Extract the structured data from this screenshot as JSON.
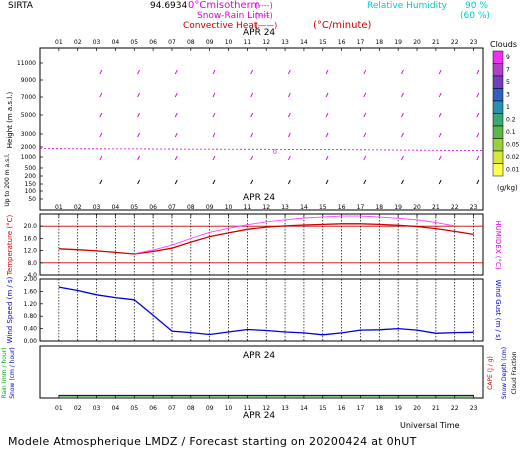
{
  "header": {
    "site": "SIRTA",
    "coords": "94.6934",
    "legend_iso": {
      "label": "0°Cmisotherm",
      "sym": "(----)"
    },
    "legend_snow": {
      "label": "Snow-Rain Limit",
      "sym": "(----)"
    },
    "legend_conv": {
      "label": "Convective Heat.",
      "sym": "(——)",
      "unit": "(°C/minute)"
    },
    "rh_label": "Relative Humidity",
    "rh_90": "90 %",
    "rh_60": "(60 %)",
    "date": "APR 24"
  },
  "hours": [
    "01",
    "02",
    "03",
    "04",
    "05",
    "06",
    "07",
    "08",
    "09",
    "10",
    "11",
    "12",
    "13",
    "14",
    "15",
    "16",
    "17",
    "18",
    "19",
    "20",
    "21",
    "22",
    "23"
  ],
  "panel1": {
    "ylabel": "Height (m a.s.l.)",
    "ylabel2": "Up to 200 m a.s.l.",
    "yticks": [
      "11000",
      "9000",
      "7000",
      "5000",
      "3000",
      "2000",
      "1000",
      "500",
      "200",
      "150",
      "100",
      "50"
    ],
    "clouds_title": "Clouds",
    "clouds_unit": "(g/kg)",
    "cloud_scale": [
      "9",
      "7",
      "5",
      "3",
      "1",
      "0.2",
      "0.1",
      "0.05",
      "0.02",
      "0.01"
    ],
    "cloud_colors": [
      "#f030f0",
      "#b040c8",
      "#7040c0",
      "#3060c0",
      "#2a8fb0",
      "#3aa870",
      "#58b848",
      "#98d040",
      "#d8e838",
      "#ffff50"
    ]
  },
  "panel2": {
    "ylabel": "Temperature (°C)",
    "ylabel_right": "HUMIDEX (°C)",
    "yticks": [
      "20.0",
      "16.0",
      "12.0",
      "8.0",
      "4.0"
    ]
  },
  "panel3": {
    "ylabel": "Wind Speed (m / s)",
    "ylabel_right": "Wind Gust (m / s)",
    "yticks": [
      "2.00",
      "1.60",
      "1.20",
      "0.80",
      "0.40",
      "0.00"
    ]
  },
  "panel4": {
    "ylabel_rain": "Rain (mm / hour)",
    "ylabel_snow": "Snow (cm / hour)",
    "ylabel_cape": "CAPE (J / g)",
    "ylabel_snowdepth": "Snow Depth (cm)",
    "ylabel_cloudfrac": "Cloud Fraction",
    "xlabel": "Universal Time"
  },
  "footer": "Modele Atmospherique LMDZ / Forecast starting on 20200424 at 0hUT",
  "chart_data": [
    {
      "type": "line",
      "title": "",
      "xlabel": "",
      "ylabel": "Temperature (°C)",
      "x": [
        1,
        2,
        3,
        4,
        5,
        6,
        7,
        8,
        9,
        10,
        11,
        12,
        13,
        14,
        15,
        16,
        17,
        18,
        19,
        20,
        21,
        22,
        23
      ],
      "ylim": [
        4,
        24
      ],
      "series": [
        {
          "name": "Temperature",
          "color": "#cc0000",
          "values": [
            12.6,
            12.3,
            11.9,
            11.4,
            10.9,
            11.7,
            12.8,
            14.8,
            16.6,
            17.8,
            19.0,
            19.7,
            20.1,
            20.4,
            20.6,
            20.8,
            20.8,
            20.6,
            20.3,
            19.9,
            19.2,
            18.3,
            17.3
          ]
        },
        {
          "name": "HUMIDEX",
          "color": "#ff44ff",
          "values": [
            null,
            null,
            null,
            null,
            11.0,
            12.2,
            13.8,
            16.0,
            18.0,
            19.3,
            20.5,
            21.4,
            22.1,
            22.7,
            23.0,
            23.3,
            23.3,
            23.0,
            22.6,
            22.1,
            21.2,
            20.1,
            null
          ]
        }
      ],
      "reference_lines": [
        20.0,
        8.0
      ]
    },
    {
      "type": "line",
      "title": "",
      "xlabel": "",
      "ylabel": "Wind Speed (m / s)",
      "x": [
        1,
        2,
        3,
        4,
        5,
        6,
        7,
        8,
        9,
        10,
        11,
        12,
        13,
        14,
        15,
        16,
        17,
        18,
        19,
        20,
        21,
        22,
        23
      ],
      "ylim": [
        0.0,
        2.0
      ],
      "series": [
        {
          "name": "Wind Speed",
          "color": "#0000dd",
          "values": [
            1.74,
            1.63,
            1.49,
            1.4,
            1.33,
            0.83,
            0.32,
            0.27,
            0.21,
            0.29,
            0.37,
            0.34,
            0.29,
            0.26,
            0.2,
            0.26,
            0.35,
            0.36,
            0.4,
            0.35,
            0.25,
            0.27,
            0.28
          ]
        }
      ]
    },
    {
      "type": "line",
      "title": "",
      "xlabel": "Universal Time",
      "ylabel": "Rain (mm / hour)",
      "x": [
        1,
        2,
        3,
        4,
        5,
        6,
        7,
        8,
        9,
        10,
        11,
        12,
        13,
        14,
        15,
        16,
        17,
        18,
        19,
        20,
        21,
        22,
        23
      ],
      "series": [
        {
          "name": "Rain",
          "color": "#008800",
          "values": [
            0,
            0,
            0,
            0,
            0,
            0,
            0,
            0,
            0,
            0,
            0,
            0,
            0,
            0,
            0,
            0,
            0,
            0,
            0,
            0,
            0,
            0,
            0
          ]
        },
        {
          "name": "Snow",
          "color": "#0000cc",
          "values": [
            0,
            0,
            0,
            0,
            0,
            0,
            0,
            0,
            0,
            0,
            0,
            0,
            0,
            0,
            0,
            0,
            0,
            0,
            0,
            0,
            0,
            0,
            0
          ]
        }
      ]
    },
    {
      "type": "line",
      "title": "",
      "ylabel": "Height (m a.s.l.)",
      "x": [
        1,
        2,
        3,
        4,
        5,
        6,
        7,
        8,
        9,
        10,
        11,
        12,
        13,
        14,
        15,
        16,
        17,
        18,
        19,
        20,
        21,
        22,
        23
      ],
      "series": [
        {
          "name": "0°C isotherm",
          "color": "#dd00dd",
          "values": [
            2750,
            2740,
            2730,
            2720,
            2710,
            2700,
            2690,
            2680,
            2670,
            2660,
            2650,
            2640,
            2630,
            2620,
            2610,
            2590,
            2570,
            2550,
            2530,
            2510,
            2490,
            2470,
            2450
          ]
        }
      ]
    }
  ]
}
